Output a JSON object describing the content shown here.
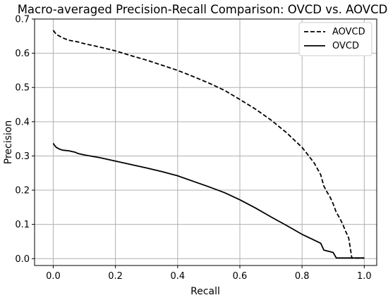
{
  "chart_data": {
    "type": "line",
    "title": "Macro-averaged Precision-Recall Comparison: OVCD vs. AOVCD",
    "xlabel": "Recall",
    "ylabel": "Precision",
    "xlim": [
      -0.06,
      1.04
    ],
    "ylim": [
      -0.02,
      0.7
    ],
    "xticks": [
      0.0,
      0.2,
      0.4,
      0.6,
      0.8,
      1.0
    ],
    "xtick_labels": [
      "0.0",
      "0.2",
      "0.4",
      "0.6",
      "0.8",
      "1.0"
    ],
    "yticks": [
      0.0,
      0.1,
      0.2,
      0.3,
      0.4,
      0.5,
      0.6,
      0.7
    ],
    "ytick_labels": [
      "0.0",
      "0.1",
      "0.2",
      "0.3",
      "0.4",
      "0.5",
      "0.6",
      "0.7"
    ],
    "grid": true,
    "legend_position": "top-right",
    "series": [
      {
        "name": "AOVCD",
        "style": "dashed",
        "color": "#000000",
        "x": [
          0.0,
          0.01,
          0.03,
          0.05,
          0.08,
          0.1,
          0.15,
          0.2,
          0.25,
          0.3,
          0.35,
          0.4,
          0.45,
          0.5,
          0.55,
          0.6,
          0.65,
          0.7,
          0.75,
          0.8,
          0.82,
          0.84,
          0.86,
          0.87,
          0.88,
          0.89,
          0.9,
          0.91,
          0.92,
          0.93,
          0.94,
          0.95,
          0.96,
          0.97,
          0.98,
          1.0
        ],
        "y": [
          0.667,
          0.655,
          0.645,
          0.638,
          0.633,
          0.628,
          0.618,
          0.607,
          0.593,
          0.58,
          0.565,
          0.55,
          0.532,
          0.513,
          0.492,
          0.465,
          0.437,
          0.405,
          0.368,
          0.325,
          0.302,
          0.278,
          0.245,
          0.212,
          0.195,
          0.18,
          0.16,
          0.135,
          0.12,
          0.102,
          0.08,
          0.06,
          0.002,
          0.002,
          0.002,
          0.002
        ]
      },
      {
        "name": "OVCD",
        "style": "solid",
        "color": "#000000",
        "x": [
          0.0,
          0.005,
          0.01,
          0.02,
          0.03,
          0.05,
          0.07,
          0.08,
          0.1,
          0.15,
          0.2,
          0.25,
          0.3,
          0.35,
          0.4,
          0.45,
          0.5,
          0.55,
          0.6,
          0.65,
          0.7,
          0.75,
          0.8,
          0.83,
          0.86,
          0.87,
          0.9,
          0.91,
          1.0
        ],
        "y": [
          0.337,
          0.33,
          0.325,
          0.32,
          0.317,
          0.315,
          0.311,
          0.307,
          0.303,
          0.295,
          0.285,
          0.275,
          0.265,
          0.254,
          0.242,
          0.226,
          0.21,
          0.193,
          0.172,
          0.148,
          0.122,
          0.097,
          0.071,
          0.058,
          0.045,
          0.025,
          0.018,
          0.002,
          0.002
        ]
      }
    ]
  }
}
